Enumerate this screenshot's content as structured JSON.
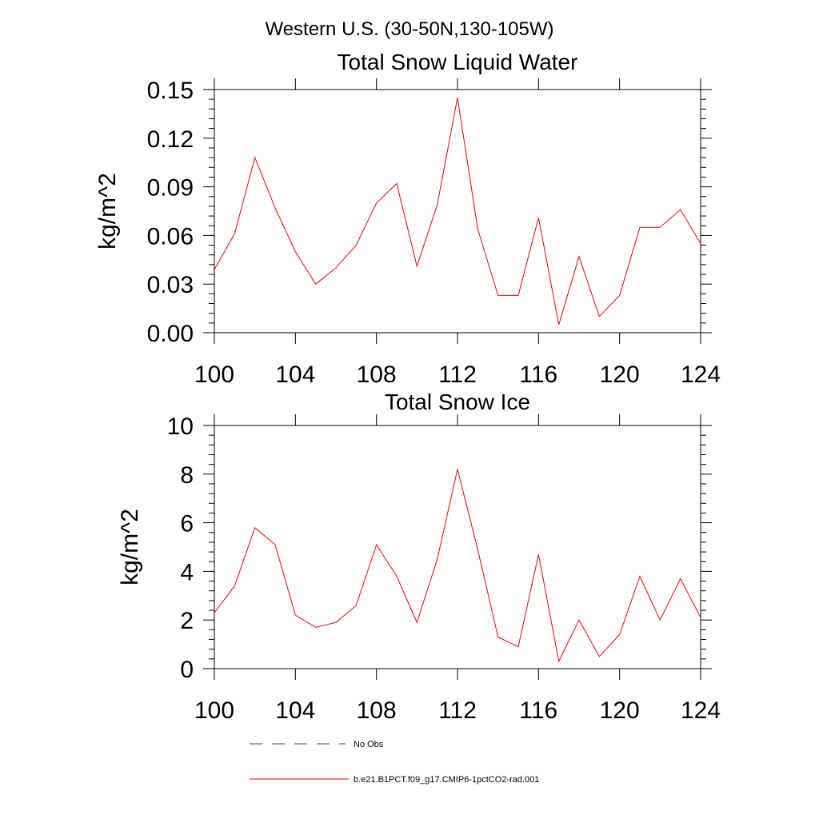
{
  "figure_title": "Western U.S. (30-50N,130-105W)",
  "chart_data": [
    {
      "type": "line",
      "title": "Total Snow Liquid Water",
      "ylabel": "kg/m^2",
      "xlabel": "",
      "xlim": [
        100,
        124
      ],
      "ylim": [
        0,
        0.15
      ],
      "xticks": [
        100,
        104,
        108,
        112,
        116,
        120,
        124
      ],
      "xtick_labels": [
        "100",
        "104",
        "108",
        "112",
        "116",
        "120",
        "124"
      ],
      "yticks": [
        0,
        0.03,
        0.06,
        0.09,
        0.12,
        0.15
      ],
      "ytick_labels": [
        "0.00",
        "0.03",
        "0.06",
        "0.09",
        "0.12",
        "0.15"
      ],
      "x": [
        100,
        101,
        102,
        103,
        104,
        105,
        106,
        107,
        108,
        109,
        110,
        111,
        112,
        113,
        114,
        115,
        116,
        117,
        118,
        119,
        120,
        121,
        122,
        123,
        124
      ],
      "series": [
        {
          "name": "b.e21.B1PCT.f09_g17.CMIP6-1pctCO2-rad.001",
          "color": "#ff0000",
          "values": [
            0.039,
            0.061,
            0.108,
            0.077,
            0.05,
            0.03,
            0.04,
            0.054,
            0.08,
            0.092,
            0.041,
            0.079,
            0.145,
            0.064,
            0.023,
            0.023,
            0.071,
            0.005,
            0.047,
            0.01,
            0.023,
            0.065,
            0.065,
            0.076,
            0.055
          ]
        }
      ]
    },
    {
      "type": "line",
      "title": "Total Snow Ice",
      "ylabel": "kg/m^2",
      "xlabel": "",
      "xlim": [
        100,
        124
      ],
      "ylim": [
        0,
        10
      ],
      "xticks": [
        100,
        104,
        108,
        112,
        116,
        120,
        124
      ],
      "xtick_labels": [
        "100",
        "104",
        "108",
        "112",
        "116",
        "120",
        "124"
      ],
      "yticks": [
        0,
        2,
        4,
        6,
        8,
        10
      ],
      "ytick_labels": [
        "0",
        "2",
        "4",
        "6",
        "8",
        "10"
      ],
      "x": [
        100,
        101,
        102,
        103,
        104,
        105,
        106,
        107,
        108,
        109,
        110,
        111,
        112,
        113,
        114,
        115,
        116,
        117,
        118,
        119,
        120,
        121,
        122,
        123,
        124
      ],
      "series": [
        {
          "name": "b.e21.B1PCT.f09_g17.CMIP6-1pctCO2-rad.001",
          "color": "#ff0000",
          "values": [
            2.3,
            3.4,
            5.8,
            5.1,
            2.2,
            1.7,
            1.9,
            2.6,
            5.1,
            3.8,
            1.9,
            4.5,
            8.2,
            4.9,
            1.3,
            0.9,
            4.7,
            0.3,
            2.0,
            0.5,
            1.4,
            3.8,
            2.0,
            3.7,
            2.1
          ]
        }
      ]
    }
  ],
  "legend": {
    "placement": "bottom",
    "entries": [
      {
        "label": "No Obs",
        "style": "dashed",
        "color": "#444444"
      },
      {
        "label": "b.e21.B1PCT.f09_g17.CMIP6-1pctCO2-rad.001",
        "style": "solid",
        "color": "#ff0000"
      }
    ]
  }
}
